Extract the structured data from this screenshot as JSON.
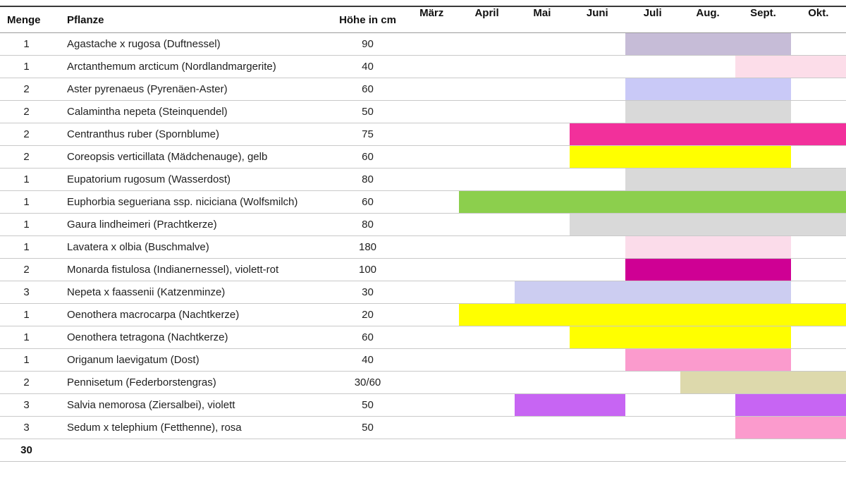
{
  "chart_data": {
    "type": "table",
    "title": "",
    "columns": {
      "menge": "Menge",
      "pflanze": "Pflanze",
      "hoehe": "Höhe in cm"
    },
    "months": [
      "März",
      "April",
      "Mai",
      "Juni",
      "Juli",
      "Aug.",
      "Sept.",
      "Okt."
    ],
    "legend_position": "none",
    "grid": "horizontal-row-separators-only",
    "rows": [
      {
        "menge": "1",
        "pflanze": "Agastache x rugosa (Duftnessel)",
        "hoehe": "90",
        "bloom": [
          {
            "from": "Juli",
            "to": "Sept.",
            "color": "#c6bcd7"
          }
        ]
      },
      {
        "menge": "1",
        "pflanze": "Arctanthemum arcticum (Nordlandmargerite)",
        "hoehe": "40",
        "bloom": [
          {
            "from": "Sept.",
            "to": "Okt.",
            "color": "#fcdde9"
          }
        ]
      },
      {
        "menge": "2",
        "pflanze": "Aster pyrenaeus (Pyrenäen-Aster)",
        "hoehe": "60",
        "bloom": [
          {
            "from": "Juli",
            "to": "Sept.",
            "color": "#c9c9f7"
          }
        ]
      },
      {
        "menge": "2",
        "pflanze": "Calamintha nepeta (Steinquendel)",
        "hoehe": "50",
        "bloom": [
          {
            "from": "Juli",
            "to": "Sept.",
            "color": "#d9d9d9"
          }
        ]
      },
      {
        "menge": "2",
        "pflanze": "Centranthus ruber (Spornblume)",
        "hoehe": "75",
        "bloom": [
          {
            "from": "Juni",
            "to": "Okt.",
            "color": "#f2309b"
          }
        ]
      },
      {
        "menge": "2",
        "pflanze": "Coreopsis verticillata (Mädchenauge), gelb",
        "hoehe": "60",
        "bloom": [
          {
            "from": "Juni",
            "to": "Sept.",
            "color": "#ffff00"
          }
        ]
      },
      {
        "menge": "1",
        "pflanze": "Eupatorium rugosum (Wasserdost)",
        "hoehe": "80",
        "bloom": [
          {
            "from": "Juli",
            "to": "Okt.",
            "color": "#d9d9d9"
          }
        ]
      },
      {
        "menge": "1",
        "pflanze": "Euphorbia segueriana ssp. niciciana (Wolfsmilch)",
        "hoehe": "60",
        "bloom": [
          {
            "from": "April",
            "to": "Okt.",
            "color": "#8ccf4d"
          }
        ]
      },
      {
        "menge": "1",
        "pflanze": "Gaura lindheimeri (Prachtkerze)",
        "hoehe": "80",
        "bloom": [
          {
            "from": "Juni",
            "to": "Okt.",
            "color": "#d9d9d9"
          }
        ]
      },
      {
        "menge": "1",
        "pflanze": "Lavatera x olbia (Buschmalve)",
        "hoehe": "180",
        "bloom": [
          {
            "from": "Juli",
            "to": "Sept.",
            "color": "#fbdcea"
          }
        ]
      },
      {
        "menge": "2",
        "pflanze": "Monarda fistulosa (Indianernessel), violett-rot",
        "hoehe": "100",
        "bloom": [
          {
            "from": "Juli",
            "to": "Sept.",
            "color": "#cf0094"
          }
        ]
      },
      {
        "menge": "3",
        "pflanze": "Nepeta x faassenii (Katzenminze)",
        "hoehe": "30",
        "bloom": [
          {
            "from": "Mai",
            "to": "Sept.",
            "color": "#cccdf1"
          }
        ]
      },
      {
        "menge": "1",
        "pflanze": "Oenothera macrocarpa (Nachtkerze)",
        "hoehe": "20",
        "bloom": [
          {
            "from": "April",
            "to": "Okt.",
            "color": "#ffff00"
          }
        ]
      },
      {
        "menge": "1",
        "pflanze": "Oenothera tetragona (Nachtkerze)",
        "hoehe": "60",
        "bloom": [
          {
            "from": "Juni",
            "to": "Sept.",
            "color": "#ffff00"
          }
        ]
      },
      {
        "menge": "1",
        "pflanze": "Origanum laevigatum (Dost)",
        "hoehe": "40",
        "bloom": [
          {
            "from": "Juli",
            "to": "Sept.",
            "color": "#fb9bcd"
          }
        ]
      },
      {
        "menge": "2",
        "pflanze": "Pennisetum (Federborstengras)",
        "hoehe": "30/60",
        "bloom": [
          {
            "from": "Aug.",
            "to": "Okt.",
            "color": "#ddd9ac"
          }
        ]
      },
      {
        "menge": "3",
        "pflanze": "Salvia nemorosa (Ziersalbei), violett",
        "hoehe": "50",
        "bloom": [
          {
            "from": "Mai",
            "to": "Juni",
            "color": "#c765f3"
          },
          {
            "from": "Sept.",
            "to": "Okt.",
            "color": "#c765f3"
          }
        ]
      },
      {
        "menge": "3",
        "pflanze": "Sedum x telephium (Fetthenne), rosa",
        "hoehe": "50",
        "bloom": [
          {
            "from": "Sept.",
            "to": "Okt.",
            "color": "#fb9bcd"
          }
        ]
      }
    ],
    "total_menge": "30"
  }
}
